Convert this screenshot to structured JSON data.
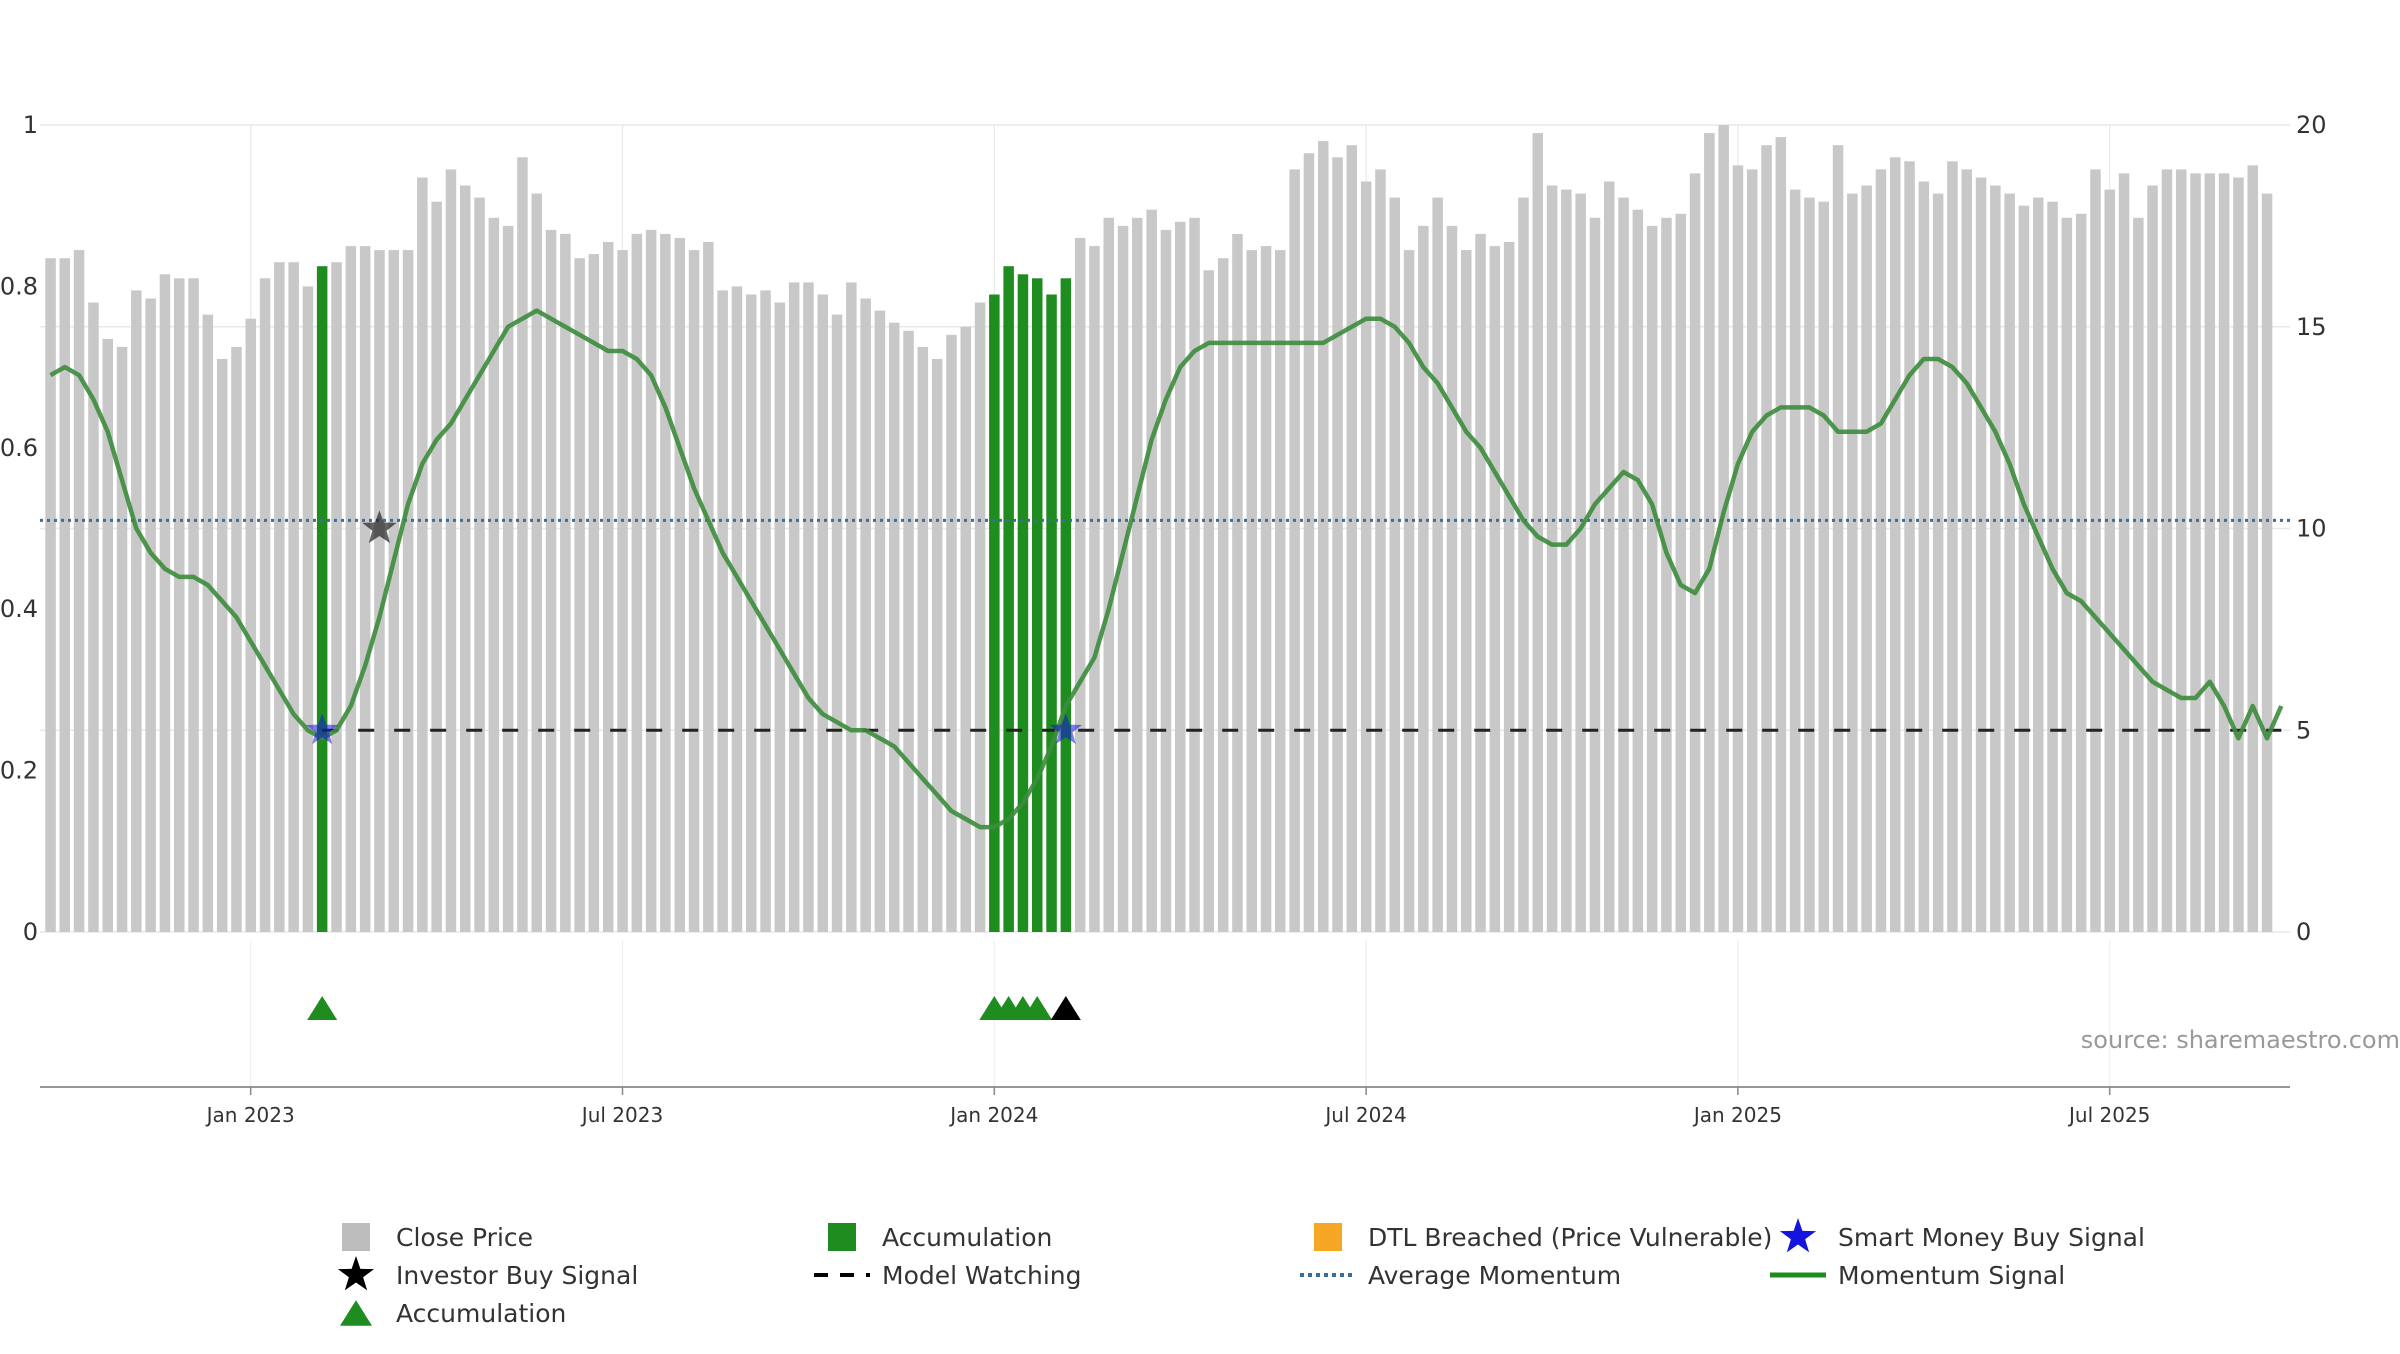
{
  "chart_data": {
    "type": "bar",
    "source_note": "source: sharemaestro.com",
    "x_ticks": [
      {
        "label": "Jan 2023",
        "week": 14
      },
      {
        "label": "Jul 2023",
        "week": 40
      },
      {
        "label": "Jan 2024",
        "week": 66
      },
      {
        "label": "Jul 2024",
        "week": 92
      },
      {
        "label": "Jan 2025",
        "week": 118
      },
      {
        "label": "Jul 2025",
        "week": 144
      }
    ],
    "left_axis": {
      "ticks": [
        "0",
        "0.2",
        "0.4",
        "0.6",
        "0.8",
        "1"
      ],
      "ylim": [
        0,
        1
      ]
    },
    "right_axis": {
      "ticks": [
        "0",
        "5",
        "10",
        "15",
        "20"
      ],
      "ylim": [
        0,
        20
      ]
    },
    "close_price": [
      16.7,
      16.7,
      16.9,
      15.6,
      14.7,
      14.5,
      15.9,
      15.7,
      16.3,
      16.2,
      16.2,
      15.3,
      14.2,
      14.5,
      15.2,
      16.2,
      16.6,
      16.6,
      16.0,
      16.5,
      16.6,
      17.0,
      17.0,
      16.9,
      16.9,
      16.9,
      18.7,
      18.1,
      18.9,
      18.5,
      18.2,
      17.7,
      17.5,
      19.2,
      18.3,
      17.4,
      17.3,
      16.7,
      16.8,
      17.1,
      16.9,
      17.3,
      17.4,
      17.3,
      17.2,
      16.9,
      17.1,
      15.9,
      16.0,
      15.8,
      15.9,
      15.6,
      16.1,
      16.1,
      15.8,
      15.3,
      16.1,
      15.7,
      15.4,
      15.1,
      14.9,
      14.5,
      14.2,
      14.8,
      15.0,
      15.6,
      15.8,
      16.5,
      16.3,
      16.2,
      15.8,
      16.2,
      17.2,
      17.0,
      17.7,
      17.5,
      17.7,
      17.9,
      17.4,
      17.6,
      17.7,
      16.4,
      16.7,
      17.3,
      16.9,
      17.0,
      16.9,
      18.9,
      19.3,
      19.6,
      19.2,
      19.5,
      18.6,
      18.9,
      18.2,
      16.9,
      17.5,
      18.2,
      17.5,
      16.9,
      17.3,
      17.0,
      17.1,
      18.2,
      19.8,
      18.5,
      18.4,
      18.3,
      17.7,
      18.6,
      18.2,
      17.9,
      17.5,
      17.7,
      17.8,
      18.8,
      19.8,
      20.0,
      19.0,
      18.9,
      19.5,
      19.7,
      18.4,
      18.2,
      18.1,
      19.5,
      18.3,
      18.5,
      18.9,
      19.2,
      19.1,
      18.6,
      18.3,
      19.1,
      18.9,
      18.7,
      18.5,
      18.3,
      18.0,
      18.2,
      18.1,
      17.7,
      17.8,
      18.9,
      18.4,
      18.8,
      17.7,
      18.5,
      18.9,
      18.9,
      18.8,
      18.8,
      18.8,
      18.7,
      19.0,
      18.3
    ],
    "momentum_signal": [
      [
        0,
        0.69
      ],
      [
        1,
        0.7
      ],
      [
        2,
        0.69
      ],
      [
        3,
        0.66
      ],
      [
        4,
        0.62
      ],
      [
        5,
        0.56
      ],
      [
        6,
        0.5
      ],
      [
        7,
        0.47
      ],
      [
        8,
        0.45
      ],
      [
        9,
        0.44
      ],
      [
        10,
        0.44
      ],
      [
        11,
        0.43
      ],
      [
        12,
        0.41
      ],
      [
        13,
        0.39
      ],
      [
        14,
        0.36
      ],
      [
        15,
        0.33
      ],
      [
        16,
        0.3
      ],
      [
        17,
        0.27
      ],
      [
        18,
        0.25
      ],
      [
        19,
        0.24
      ],
      [
        20,
        0.25
      ],
      [
        21,
        0.28
      ],
      [
        22,
        0.33
      ],
      [
        23,
        0.39
      ],
      [
        24,
        0.46
      ],
      [
        25,
        0.53
      ],
      [
        26,
        0.58
      ],
      [
        27,
        0.61
      ],
      [
        28,
        0.63
      ],
      [
        29,
        0.66
      ],
      [
        30,
        0.69
      ],
      [
        31,
        0.72
      ],
      [
        32,
        0.75
      ],
      [
        33,
        0.76
      ],
      [
        34,
        0.77
      ],
      [
        35,
        0.76
      ],
      [
        36,
        0.75
      ],
      [
        37,
        0.74
      ],
      [
        38,
        0.73
      ],
      [
        39,
        0.72
      ],
      [
        40,
        0.72
      ],
      [
        41,
        0.71
      ],
      [
        42,
        0.69
      ],
      [
        43,
        0.65
      ],
      [
        44,
        0.6
      ],
      [
        45,
        0.55
      ],
      [
        46,
        0.51
      ],
      [
        47,
        0.47
      ],
      [
        48,
        0.44
      ],
      [
        49,
        0.41
      ],
      [
        50,
        0.38
      ],
      [
        51,
        0.35
      ],
      [
        52,
        0.32
      ],
      [
        53,
        0.29
      ],
      [
        54,
        0.27
      ],
      [
        55,
        0.26
      ],
      [
        56,
        0.25
      ],
      [
        57,
        0.25
      ],
      [
        58,
        0.24
      ],
      [
        59,
        0.23
      ],
      [
        60,
        0.21
      ],
      [
        61,
        0.19
      ],
      [
        62,
        0.17
      ],
      [
        63,
        0.15
      ],
      [
        64,
        0.14
      ],
      [
        65,
        0.13
      ],
      [
        66,
        0.13
      ],
      [
        67,
        0.14
      ],
      [
        68,
        0.16
      ],
      [
        69,
        0.19
      ],
      [
        70,
        0.23
      ],
      [
        71,
        0.28
      ],
      [
        72,
        0.31
      ],
      [
        73,
        0.34
      ],
      [
        74,
        0.4
      ],
      [
        75,
        0.47
      ],
      [
        76,
        0.54
      ],
      [
        77,
        0.61
      ],
      [
        78,
        0.66
      ],
      [
        79,
        0.7
      ],
      [
        80,
        0.72
      ],
      [
        81,
        0.73
      ],
      [
        82,
        0.73
      ],
      [
        83,
        0.73
      ],
      [
        84,
        0.73
      ],
      [
        85,
        0.73
      ],
      [
        86,
        0.73
      ],
      [
        87,
        0.73
      ],
      [
        88,
        0.73
      ],
      [
        89,
        0.73
      ],
      [
        90,
        0.74
      ],
      [
        91,
        0.75
      ],
      [
        92,
        0.76
      ],
      [
        93,
        0.76
      ],
      [
        94,
        0.75
      ],
      [
        95,
        0.73
      ],
      [
        96,
        0.7
      ],
      [
        97,
        0.68
      ],
      [
        98,
        0.65
      ],
      [
        99,
        0.62
      ],
      [
        100,
        0.6
      ],
      [
        101,
        0.57
      ],
      [
        102,
        0.54
      ],
      [
        103,
        0.51
      ],
      [
        104,
        0.49
      ],
      [
        105,
        0.48
      ],
      [
        106,
        0.48
      ],
      [
        107,
        0.5
      ],
      [
        108,
        0.53
      ],
      [
        109,
        0.55
      ],
      [
        110,
        0.57
      ],
      [
        111,
        0.56
      ],
      [
        112,
        0.53
      ],
      [
        113,
        0.47
      ],
      [
        114,
        0.43
      ],
      [
        115,
        0.42
      ],
      [
        116,
        0.45
      ],
      [
        117,
        0.52
      ],
      [
        118,
        0.58
      ],
      [
        119,
        0.62
      ],
      [
        120,
        0.64
      ],
      [
        121,
        0.65
      ],
      [
        122,
        0.65
      ],
      [
        123,
        0.65
      ],
      [
        124,
        0.64
      ],
      [
        125,
        0.62
      ],
      [
        126,
        0.62
      ],
      [
        127,
        0.62
      ],
      [
        128,
        0.63
      ],
      [
        129,
        0.66
      ],
      [
        130,
        0.69
      ],
      [
        131,
        0.71
      ],
      [
        132,
        0.71
      ],
      [
        133,
        0.7
      ],
      [
        134,
        0.68
      ],
      [
        135,
        0.65
      ],
      [
        136,
        0.62
      ],
      [
        137,
        0.58
      ],
      [
        138,
        0.53
      ],
      [
        139,
        0.49
      ],
      [
        140,
        0.45
      ],
      [
        141,
        0.42
      ],
      [
        142,
        0.41
      ],
      [
        143,
        0.39
      ],
      [
        144,
        0.37
      ],
      [
        145,
        0.35
      ],
      [
        146,
        0.33
      ],
      [
        147,
        0.31
      ],
      [
        148,
        0.3
      ],
      [
        149,
        0.29
      ],
      [
        150,
        0.29
      ],
      [
        151,
        0.31
      ],
      [
        152,
        0.28
      ],
      [
        153,
        0.24
      ],
      [
        154,
        0.28
      ],
      [
        155,
        0.24
      ],
      [
        156,
        0.28
      ]
    ],
    "average_momentum": 0.51,
    "model_watching_level": 0.25,
    "model_watching_range": [
      19,
      156
    ],
    "accumulation_bars": [
      19,
      66,
      67,
      68,
      69,
      70,
      71
    ],
    "accumulation_triangles": [
      19,
      66,
      67,
      68,
      69
    ],
    "investor_buy_signal_triangles": [
      71
    ],
    "smart_money_buy_signals": [
      [
        19,
        0.25
      ],
      [
        71,
        0.25
      ]
    ],
    "investor_buy_signals": [
      [
        23,
        0.5
      ]
    ],
    "legend": [
      {
        "label": "Close Price",
        "symbol": "gray-square",
        "color": "#bdbdbd"
      },
      {
        "label": "Accumulation",
        "symbol": "green-square",
        "color": "#1e8c1e"
      },
      {
        "label": "DTL Breached (Price Vulnerable)",
        "symbol": "orange-square",
        "color": "#f5a623"
      },
      {
        "label": "Smart Money Buy Signal",
        "symbol": "blue-star",
        "color": "#1414dc"
      },
      {
        "label": "Investor Buy Signal",
        "symbol": "black-star",
        "color": "#000000"
      },
      {
        "label": "Model Watching",
        "symbol": "dashed-line",
        "color": "#000000"
      },
      {
        "label": "Average Momentum",
        "symbol": "dotted-line",
        "color": "#3a6e9c"
      },
      {
        "label": "Momentum Signal",
        "symbol": "solid-line",
        "color": "#1e8c1e"
      },
      {
        "label": "Accumulation",
        "symbol": "green-triangle",
        "color": "#1e8c1e"
      }
    ],
    "colors": {
      "close_price": "#c8c8c8",
      "accumulation": "#1e8c1e",
      "momentum": "#3c8c3c",
      "average_momentum": "#3a6e9c",
      "model_watching": "#222222",
      "smart_money": "#1414dc",
      "investor": "#222222",
      "grid": "#e8e8e8",
      "axis_text": "#333333",
      "source_text": "#999999"
    }
  }
}
